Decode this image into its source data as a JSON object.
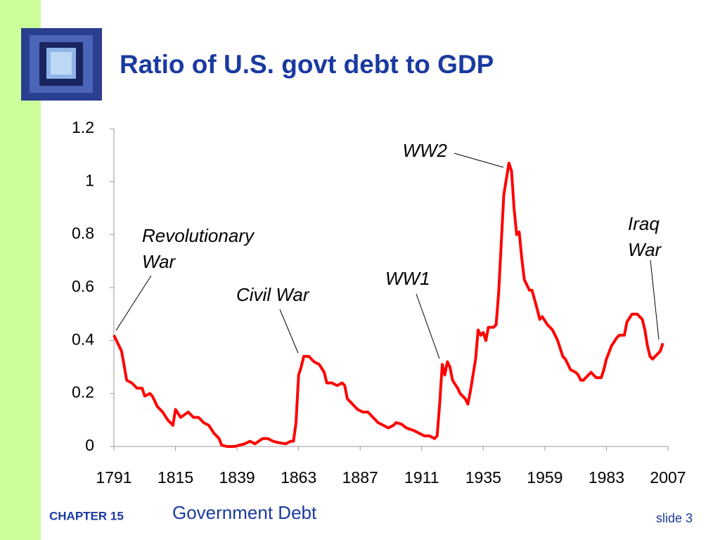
{
  "chart_data": {
    "type": "line",
    "title": "Ratio of U.S. govt debt to GDP",
    "color": "#ff0000",
    "x": [
      1791,
      1794,
      1796,
      1798,
      1800,
      1802,
      1803,
      1805,
      1806,
      1808,
      1810,
      1812,
      1814,
      1815,
      1817,
      1820,
      1822,
      1824,
      1826,
      1828,
      1830,
      1832,
      1833,
      1835,
      1838,
      1840,
      1842,
      1844,
      1846,
      1849,
      1851,
      1853,
      1855,
      1858,
      1860,
      1861,
      1862,
      1863,
      1864,
      1865,
      1867,
      1869,
      1871,
      1873,
      1874,
      1876,
      1878,
      1880,
      1881,
      1882,
      1884,
      1886,
      1888,
      1890,
      1892,
      1894,
      1896,
      1898,
      1900,
      1901,
      1903,
      1905,
      1908,
      1910,
      1912,
      1914,
      1916,
      1917,
      1918,
      1919,
      1920,
      1921,
      1922,
      1923,
      1925,
      1926,
      1928,
      1929,
      1930,
      1932,
      1933,
      1934,
      1935,
      1936,
      1937,
      1939,
      1940,
      1941,
      1943,
      1945,
      1946,
      1947,
      1948,
      1949,
      1950,
      1951,
      1953,
      1954,
      1956,
      1957,
      1958,
      1960,
      1962,
      1964,
      1966,
      1967,
      1969,
      1971,
      1972,
      1973,
      1974,
      1976,
      1977,
      1979,
      1981,
      1982,
      1983,
      1985,
      1987,
      1988,
      1990,
      1991,
      1993,
      1995,
      1997,
      1998,
      1999,
      2000,
      2001,
      2002,
      2004,
      2005
    ],
    "values": [
      0.42,
      0.36,
      0.25,
      0.24,
      0.22,
      0.22,
      0.19,
      0.2,
      0.19,
      0.15,
      0.13,
      0.1,
      0.08,
      0.14,
      0.11,
      0.13,
      0.11,
      0.11,
      0.09,
      0.08,
      0.05,
      0.03,
      0.005,
      0,
      0,
      0.005,
      0.01,
      0.02,
      0.01,
      0.03,
      0.03,
      0.02,
      0.015,
      0.01,
      0.02,
      0.02,
      0.09,
      0.27,
      0.3,
      0.34,
      0.34,
      0.32,
      0.31,
      0.28,
      0.24,
      0.24,
      0.23,
      0.24,
      0.23,
      0.18,
      0.16,
      0.14,
      0.13,
      0.13,
      0.11,
      0.09,
      0.08,
      0.07,
      0.08,
      0.09,
      0.085,
      0.07,
      0.06,
      0.05,
      0.04,
      0.04,
      0.03,
      0.04,
      0.16,
      0.31,
      0.27,
      0.32,
      0.3,
      0.25,
      0.22,
      0.2,
      0.18,
      0.16,
      0.21,
      0.33,
      0.44,
      0.42,
      0.43,
      0.4,
      0.45,
      0.45,
      0.46,
      0.58,
      0.95,
      1.07,
      1.04,
      0.9,
      0.8,
      0.81,
      0.71,
      0.63,
      0.59,
      0.59,
      0.52,
      0.48,
      0.49,
      0.46,
      0.44,
      0.4,
      0.34,
      0.33,
      0.29,
      0.28,
      0.27,
      0.25,
      0.25,
      0.27,
      0.28,
      0.26,
      0.26,
      0.29,
      0.33,
      0.38,
      0.41,
      0.42,
      0.42,
      0.47,
      0.5,
      0.5,
      0.48,
      0.44,
      0.38,
      0.34,
      0.33,
      0.34,
      0.36,
      0.39
    ],
    "xlim": [
      1791,
      2007
    ],
    "xticks": [
      1791,
      1815,
      1839,
      1863,
      1887,
      1911,
      1935,
      1959,
      1983,
      2007
    ],
    "ylim": [
      0,
      1.2
    ],
    "yticks": [
      0,
      0.2,
      0.4,
      0.6,
      0.8,
      1,
      1.2
    ],
    "annotations": [
      [
        "Revolutionary",
        "War"
      ],
      [
        "Civil War"
      ],
      [
        "WW1"
      ],
      [
        "WW2"
      ],
      [
        "Iraq",
        "War"
      ]
    ]
  },
  "footer": {
    "chapter": "CHAPTER 15",
    "subject": "Government Debt",
    "slide": "slide 3"
  }
}
